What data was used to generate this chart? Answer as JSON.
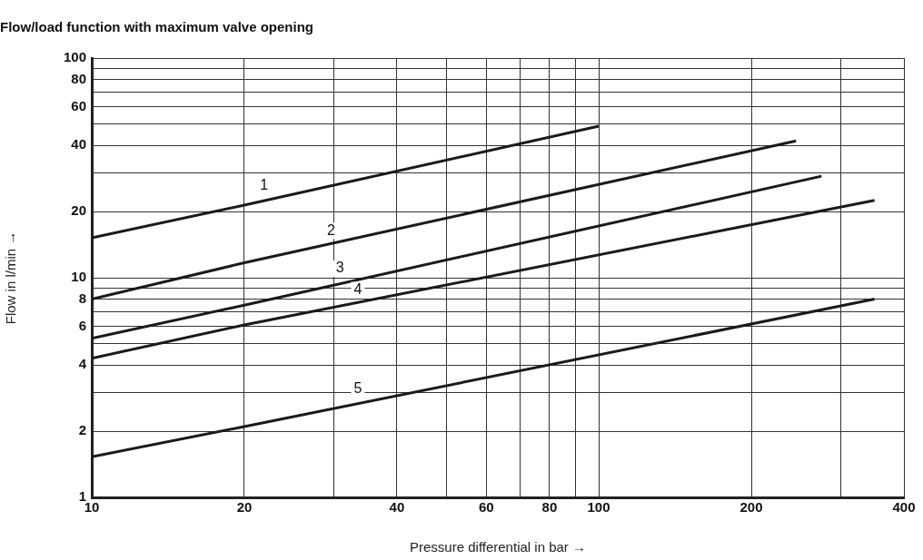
{
  "chart_data": {
    "type": "line",
    "title": "Flow/load function with maximum valve opening",
    "xlabel": "Pressure differential in bar →",
    "ylabel": "Flow in l/min →",
    "log": "xy",
    "grid": true,
    "legend": false,
    "marker": "none",
    "line_style": "solid",
    "xlim": [
      10,
      400
    ],
    "ylim": [
      1,
      100
    ],
    "xticks": [
      10,
      20,
      {
        "value": 30,
        "label": null
      },
      40,
      {
        "value": 50,
        "label": null
      },
      60,
      {
        "value": 70,
        "label": null
      },
      80,
      {
        "value": 90,
        "label": null
      },
      100,
      200,
      {
        "value": 300,
        "label": null
      },
      400
    ],
    "yticks": [
      1,
      2,
      {
        "value": 3,
        "label": null
      },
      4,
      {
        "value": 5,
        "label": null
      },
      6,
      {
        "value": 7,
        "label": null
      },
      8,
      {
        "value": 9,
        "label": null
      },
      10,
      20,
      {
        "value": 30,
        "label": null
      },
      40,
      {
        "value": 50,
        "label": null
      },
      60,
      {
        "value": 70,
        "label": null
      },
      80,
      {
        "value": 90,
        "label": null
      },
      100
    ],
    "series": [
      {
        "name": "1",
        "color": "#1a1a1a",
        "x": [
          10,
          20,
          100
        ],
        "values": [
          15.2,
          21.4,
          49
        ]
      },
      {
        "name": "2",
        "color": "#1a1a1a",
        "x": [
          10,
          20,
          245
        ],
        "values": [
          8,
          11.7,
          42
        ]
      },
      {
        "name": "3",
        "color": "#1a1a1a",
        "x": [
          10,
          20,
          275
        ],
        "values": [
          5.3,
          7.5,
          29
        ]
      },
      {
        "name": "4",
        "color": "#1a1a1a",
        "x": [
          10,
          20,
          350
        ],
        "values": [
          4.3,
          6.1,
          22.5
        ]
      },
      {
        "name": "5",
        "color": "#1a1a1a",
        "x": [
          10,
          20,
          350
        ],
        "values": [
          1.53,
          2.1,
          8
        ]
      }
    ]
  }
}
